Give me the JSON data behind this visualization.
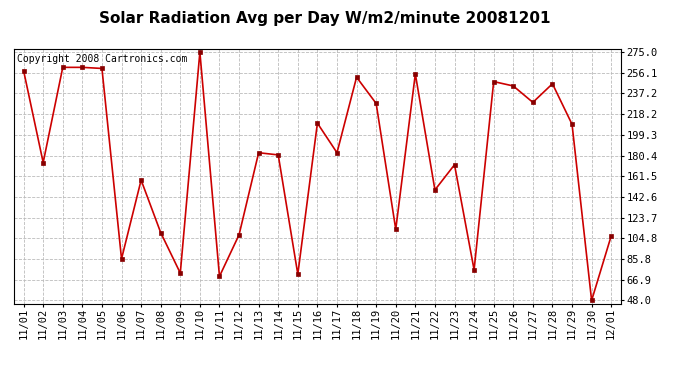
{
  "title": "Solar Radiation Avg per Day W/m2/minute 20081201",
  "copyright": "Copyright 2008 Cartronics.com",
  "labels": [
    "11/01",
    "11/02",
    "11/03",
    "11/04",
    "11/05",
    "11/06",
    "11/07",
    "11/08",
    "11/09",
    "11/10",
    "11/11",
    "11/12",
    "11/13",
    "11/14",
    "11/15",
    "11/16",
    "11/17",
    "11/18",
    "11/19",
    "11/20",
    "11/21",
    "11/22",
    "11/23",
    "11/24",
    "11/25",
    "11/26",
    "11/27",
    "11/28",
    "11/29",
    "11/30",
    "12/01"
  ],
  "values": [
    258.0,
    174.0,
    261.0,
    261.0,
    260.0,
    86.0,
    158.0,
    110.0,
    73.0,
    275.0,
    70.0,
    108.0,
    183.0,
    181.0,
    72.0,
    210.0,
    183.0,
    252.0,
    228.0,
    113.0,
    255.0,
    149.0,
    172.0,
    76.0,
    248.0,
    244.0,
    229.0,
    246.0,
    209.0,
    48.0,
    107.0
  ],
  "yticks": [
    48.0,
    66.9,
    85.8,
    104.8,
    123.7,
    142.6,
    161.5,
    180.4,
    199.3,
    218.2,
    237.2,
    256.1,
    275.0
  ],
  "ymin": 48.0,
  "ymax": 275.0,
  "line_color": "#cc0000",
  "marker_color": "#880000",
  "bg_color": "#ffffff",
  "plot_bg_color": "#ffffff",
  "grid_color": "#bbbbbb",
  "title_fontsize": 11,
  "copyright_fontsize": 7,
  "tick_fontsize": 7.5
}
